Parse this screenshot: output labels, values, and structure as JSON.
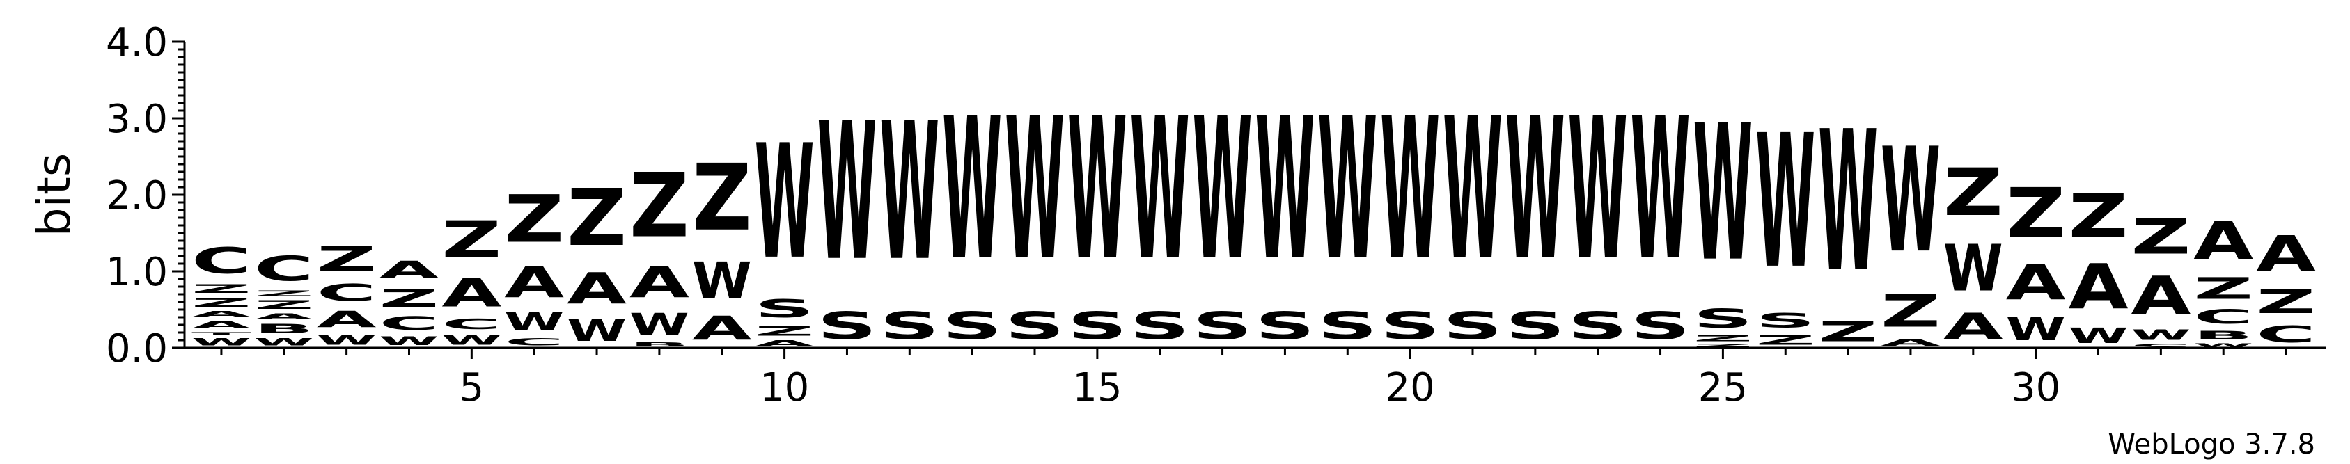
{
  "chart_data": {
    "type": "sequence-logo",
    "ylabel": "bits",
    "ylim": [
      0,
      4.0
    ],
    "y_ticks": [
      "0.0",
      "1.0",
      "2.0",
      "3.0",
      "4.0"
    ],
    "x_ticks": [
      5,
      10,
      15,
      20,
      25,
      30
    ],
    "num_positions": 34,
    "credit": "WebLogo 3.7.8",
    "colors": {
      "C": "#2e8b2e",
      "A": "#ff0000",
      "Z": "#ff0000",
      "W": "#0000ff",
      "S": "#0000ff",
      "B": "#ff8c00",
      "T": "#800080"
    },
    "positions": [
      {
        "pos": 1,
        "stack": [
          [
            "W",
            0.15
          ],
          [
            "T",
            0.07
          ],
          [
            "A",
            0.16
          ],
          [
            "A",
            0.12
          ],
          [
            "Z",
            0.18
          ],
          [
            "Z",
            0.18
          ],
          [
            "C",
            0.55
          ]
        ]
      },
      {
        "pos": 2,
        "stack": [
          [
            "W",
            0.15
          ],
          [
            "B",
            0.2
          ],
          [
            "A",
            0.12
          ],
          [
            "Z",
            0.18
          ],
          [
            "Z",
            0.12
          ],
          [
            "C",
            0.52
          ]
        ]
      },
      {
        "pos": 3,
        "stack": [
          [
            "W",
            0.2
          ],
          [
            "A",
            0.34
          ],
          [
            "C",
            0.36
          ],
          [
            "Z",
            0.52
          ]
        ]
      },
      {
        "pos": 4,
        "stack": [
          [
            "W",
            0.18
          ],
          [
            "C",
            0.28
          ],
          [
            "Z",
            0.38
          ],
          [
            "A",
            0.36
          ]
        ]
      },
      {
        "pos": 5,
        "stack": [
          [
            "W",
            0.2
          ],
          [
            "C",
            0.22
          ],
          [
            "A",
            0.6
          ],
          [
            "Z",
            0.78
          ]
        ]
      },
      {
        "pos": 6,
        "stack": [
          [
            "C",
            0.15
          ],
          [
            "W",
            0.38
          ],
          [
            "A",
            0.65
          ],
          [
            "Z",
            1.0
          ]
        ]
      },
      {
        "pos": 7,
        "stack": [
          [
            "W",
            0.45
          ],
          [
            "A",
            0.65
          ],
          [
            "Z",
            1.2
          ]
        ]
      },
      {
        "pos": 8,
        "stack": [
          [
            "B",
            0.08
          ],
          [
            "W",
            0.45
          ],
          [
            "A",
            0.65
          ],
          [
            "Z",
            1.35
          ]
        ]
      },
      {
        "pos": 9,
        "stack": [
          [
            "A",
            0.5
          ],
          [
            "W",
            0.76
          ],
          [
            "Z",
            1.4
          ]
        ]
      },
      {
        "pos": 10,
        "stack": [
          [
            "A",
            0.12
          ],
          [
            "Z",
            0.2
          ],
          [
            "S",
            0.38
          ],
          [
            "W",
            2.4
          ]
        ]
      },
      {
        "pos": 11,
        "stack": [
          [
            "S",
            0.58
          ],
          [
            "W",
            2.9
          ]
        ]
      },
      {
        "pos": 12,
        "stack": [
          [
            "S",
            0.58
          ],
          [
            "W",
            2.9
          ]
        ]
      },
      {
        "pos": 13,
        "stack": [
          [
            "S",
            0.58
          ],
          [
            "W",
            2.97
          ]
        ]
      },
      {
        "pos": 14,
        "stack": [
          [
            "S",
            0.58
          ],
          [
            "W",
            2.97
          ]
        ]
      },
      {
        "pos": 15,
        "stack": [
          [
            "S",
            0.58
          ],
          [
            "W",
            2.97
          ]
        ]
      },
      {
        "pos": 16,
        "stack": [
          [
            "S",
            0.58
          ],
          [
            "W",
            2.97
          ]
        ]
      },
      {
        "pos": 17,
        "stack": [
          [
            "S",
            0.58
          ],
          [
            "W",
            2.97
          ]
        ]
      },
      {
        "pos": 18,
        "stack": [
          [
            "S",
            0.58
          ],
          [
            "W",
            2.97
          ]
        ]
      },
      {
        "pos": 19,
        "stack": [
          [
            "S",
            0.58
          ],
          [
            "W",
            2.97
          ]
        ]
      },
      {
        "pos": 20,
        "stack": [
          [
            "S",
            0.58
          ],
          [
            "W",
            2.97
          ]
        ]
      },
      {
        "pos": 21,
        "stack": [
          [
            "S",
            0.58
          ],
          [
            "W",
            2.97
          ]
        ]
      },
      {
        "pos": 22,
        "stack": [
          [
            "S",
            0.58
          ],
          [
            "W",
            2.97
          ]
        ]
      },
      {
        "pos": 23,
        "stack": [
          [
            "S",
            0.58
          ],
          [
            "W",
            2.97
          ]
        ]
      },
      {
        "pos": 24,
        "stack": [
          [
            "S",
            0.58
          ],
          [
            "W",
            2.97
          ]
        ]
      },
      {
        "pos": 25,
        "stack": [
          [
            "Z",
            0.06
          ],
          [
            "Z",
            0.12
          ],
          [
            "S",
            0.4
          ],
          [
            "W",
            2.86
          ]
        ]
      },
      {
        "pos": 26,
        "stack": [
          [
            "Z",
            0.2
          ],
          [
            "S",
            0.3
          ],
          [
            "W",
            2.8
          ]
        ]
      },
      {
        "pos": 27,
        "stack": [
          [
            "Z",
            0.42
          ],
          [
            "W",
            2.96
          ]
        ]
      },
      {
        "pos": 28,
        "stack": [
          [
            "A",
            0.14
          ],
          [
            "Z",
            0.68
          ],
          [
            "W",
            2.2
          ]
        ]
      },
      {
        "pos": 29,
        "stack": [
          [
            "A",
            0.55
          ],
          [
            "W",
            0.98
          ],
          [
            "Z",
            1.0
          ]
        ]
      },
      {
        "pos": 30,
        "stack": [
          [
            "W",
            0.48
          ],
          [
            "A",
            0.75
          ],
          [
            "Z",
            1.05
          ]
        ]
      },
      {
        "pos": 31,
        "stack": [
          [
            "W",
            0.32
          ],
          [
            "A",
            0.95
          ],
          [
            "Z",
            0.9
          ]
        ]
      },
      {
        "pos": 32,
        "stack": [
          [
            "C",
            0.06
          ],
          [
            "W",
            0.22
          ],
          [
            "A",
            0.8
          ],
          [
            "Z",
            0.75
          ]
        ]
      },
      {
        "pos": 33,
        "stack": [
          [
            "W",
            0.07
          ],
          [
            "B",
            0.18
          ],
          [
            "C",
            0.3
          ],
          [
            "Z",
            0.45
          ],
          [
            "A",
            0.8
          ]
        ]
      },
      {
        "pos": 34,
        "stack": [
          [
            "C",
            0.35
          ],
          [
            "Z",
            0.5
          ],
          [
            "A",
            0.75
          ]
        ]
      }
    ]
  }
}
